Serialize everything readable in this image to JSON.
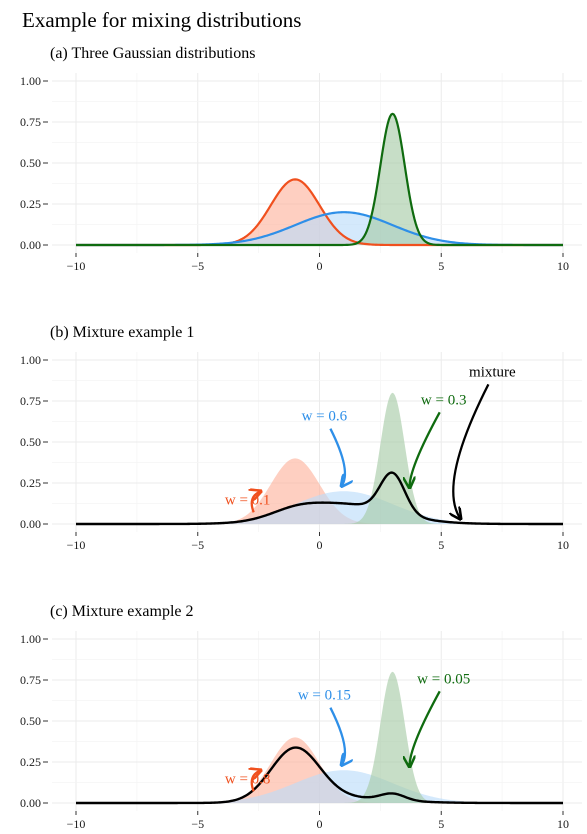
{
  "title": "Example for mixing distributions",
  "colors": {
    "comp1": "#F0501E",
    "comp2": "#2E8FE8",
    "comp3": "#0F6B0F",
    "fill1": "#FDB29B",
    "fill2": "#B9DCFA",
    "fill3": "#A5C9A5",
    "mixture": "#000000"
  },
  "chart_data": [
    {
      "type": "area",
      "subtitle": "(a) Three Gaussian distributions",
      "xlim": [
        -10,
        10
      ],
      "ylim": [
        0,
        1
      ],
      "x_ticks": [
        -10,
        -5,
        0,
        5,
        10
      ],
      "x_tick_labels": [
        "−10",
        "−5",
        "0",
        "5",
        "10"
      ],
      "y_ticks": [
        0,
        0.25,
        0.5,
        0.75,
        1
      ],
      "y_tick_labels": [
        "0.00",
        "0.25",
        "0.50",
        "0.75",
        "1.00"
      ],
      "grid": true,
      "series": [
        {
          "mean": -1,
          "sd": 1,
          "peak": 0.4,
          "line": true,
          "fill": true
        },
        {
          "mean": 1,
          "sd": 2,
          "peak": 0.2,
          "line": true,
          "fill": true
        },
        {
          "mean": 3,
          "sd": 0.5,
          "peak": 0.8,
          "line": true,
          "fill": true
        }
      ],
      "mixture": null,
      "annotations": []
    },
    {
      "type": "area",
      "subtitle": "(b) Mixture example 1",
      "xlim": [
        -10,
        10
      ],
      "ylim": [
        0,
        1
      ],
      "x_ticks": [
        -10,
        -5,
        0,
        5,
        10
      ],
      "x_tick_labels": [
        "−10",
        "−5",
        "0",
        "5",
        "10"
      ],
      "y_ticks": [
        0,
        0.25,
        0.5,
        0.75,
        1
      ],
      "y_tick_labels": [
        "0.00",
        "0.25",
        "0.50",
        "0.75",
        "1.00"
      ],
      "grid": true,
      "series": [
        {
          "mean": -1,
          "sd": 1,
          "peak": 0.4,
          "line": false,
          "fill": true
        },
        {
          "mean": 1,
          "sd": 2,
          "peak": 0.2,
          "line": false,
          "fill": true
        },
        {
          "mean": 3,
          "sd": 0.5,
          "peak": 0.8,
          "line": false,
          "fill": true
        }
      ],
      "mixture": {
        "weights": [
          0.1,
          0.6,
          0.3
        ]
      },
      "annotations": [
        {
          "text": "w = 0.1",
          "color": "comp1",
          "tx": -2.95,
          "ty": 0.12,
          "ax": -2.4,
          "ay": 0.2
        },
        {
          "text": "w = 0.6",
          "color": "comp2",
          "tx": 0.2,
          "ty": 0.63,
          "ax": 0.9,
          "ay": 0.23
        },
        {
          "text": "w = 0.3",
          "color": "comp3",
          "tx": 5.1,
          "ty": 0.73,
          "ax": 3.7,
          "ay": 0.22
        },
        {
          "text": "mixture",
          "color": "mixture",
          "tx": 7.1,
          "ty": 0.9,
          "ax": 5.8,
          "ay": 0.03
        }
      ]
    },
    {
      "type": "area",
      "subtitle": "(c) Mixture example 2",
      "xlim": [
        -10,
        10
      ],
      "ylim": [
        0,
        1
      ],
      "x_ticks": [
        -10,
        -5,
        0,
        5,
        10
      ],
      "x_tick_labels": [
        "−10",
        "−5",
        "0",
        "5",
        "10"
      ],
      "y_ticks": [
        0,
        0.25,
        0.5,
        0.75,
        1
      ],
      "y_tick_labels": [
        "0.00",
        "0.25",
        "0.50",
        "0.75",
        "1.00"
      ],
      "grid": true,
      "series": [
        {
          "mean": -1,
          "sd": 1,
          "peak": 0.4,
          "line": false,
          "fill": true
        },
        {
          "mean": 1,
          "sd": 2,
          "peak": 0.2,
          "line": false,
          "fill": true
        },
        {
          "mean": 3,
          "sd": 0.5,
          "peak": 0.8,
          "line": false,
          "fill": true
        }
      ],
      "mixture": {
        "weights": [
          0.8,
          0.15,
          0.05
        ]
      },
      "annotations": [
        {
          "text": "w = 0.8",
          "color": "comp1",
          "tx": -2.95,
          "ty": 0.12,
          "ax": -2.4,
          "ay": 0.2
        },
        {
          "text": "w = 0.15",
          "color": "comp2",
          "tx": 0.2,
          "ty": 0.63,
          "ax": 0.9,
          "ay": 0.23
        },
        {
          "text": "w = 0.05",
          "color": "comp3",
          "tx": 5.1,
          "ty": 0.73,
          "ax": 3.7,
          "ay": 0.22
        }
      ]
    }
  ]
}
